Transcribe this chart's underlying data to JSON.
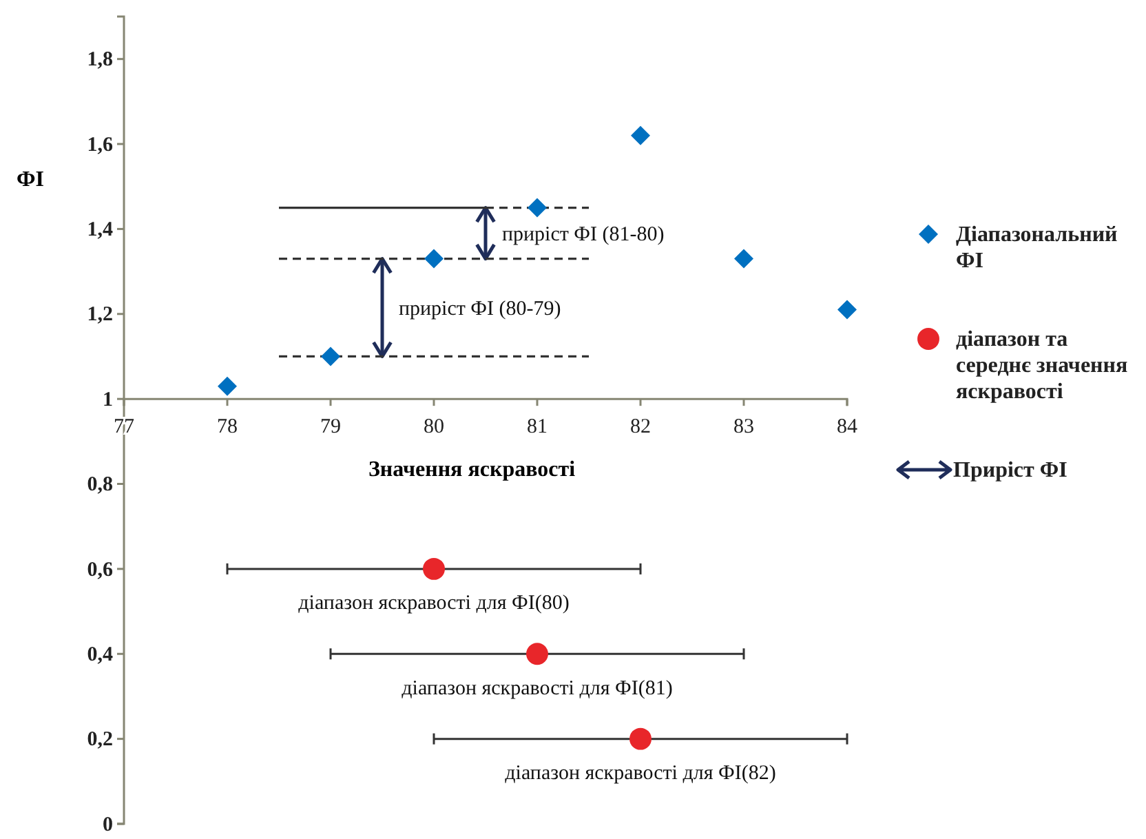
{
  "chart_data": {
    "type": "scatter",
    "xlabel": "Значення яскравості",
    "ylabel": "ФІ",
    "xlim": [
      77,
      84
    ],
    "xticks": [
      77,
      78,
      79,
      80,
      81,
      82,
      83,
      84
    ],
    "ylim": [
      0,
      1.9
    ],
    "yticks": [
      0,
      {
        "value": 0.2,
        "label": "0,2"
      },
      {
        "value": 0.4,
        "label": "0,4"
      },
      {
        "value": 0.6,
        "label": "0,6"
      },
      {
        "value": 0.8,
        "label": "0,8"
      },
      1,
      {
        "value": 1.2,
        "label": "1,2"
      },
      {
        "value": 1.4,
        "label": "1,4"
      },
      {
        "value": 1.6,
        "label": "1,6"
      },
      {
        "value": 1.8,
        "label": "1,8"
      }
    ],
    "grid": false,
    "legend": "right",
    "series": [
      {
        "name": "Діапазональний ФІ",
        "color": "#0070c0",
        "marker": "diamond",
        "x": [
          78,
          79,
          80,
          81,
          82,
          83,
          84
        ],
        "values": [
          1.03,
          1.1,
          1.33,
          1.45,
          1.62,
          1.33,
          1.21
        ]
      },
      {
        "name": "діапазон та середнє значення яскравості",
        "color": "#e8262a",
        "marker": "circle",
        "x": [
          80,
          81,
          82
        ],
        "values": [
          0.6,
          0.4,
          0.2
        ],
        "xerrors": [
          [
            78,
            82
          ],
          [
            79,
            83
          ],
          [
            80,
            84
          ]
        ]
      },
      {
        "type": "line",
        "name": "Приріст ФІ",
        "color": "#1f2d5a",
        "marker": "none",
        "line_style": "solid",
        "x": [
          79.5,
          79.5,
          null,
          80.5,
          80.5
        ],
        "values": [
          1.1,
          1.33,
          null,
          1.33,
          1.45
        ]
      },
      {
        "type": "line",
        "color": "#333333",
        "marker": "none",
        "line_style": "solid",
        "x": [
          78.5,
          80.5
        ],
        "values": [
          1.45,
          1.45
        ]
      },
      {
        "type": "line",
        "color": "#333333",
        "marker": "none",
        "line_style": "dashed",
        "x": [
          80.5,
          81.5
        ],
        "values": [
          1.45,
          1.45
        ]
      },
      {
        "type": "line",
        "color": "#333333",
        "marker": "none",
        "line_style": "dashed",
        "x": [
          78.5,
          81.5
        ],
        "values": [
          1.33,
          1.33
        ]
      },
      {
        "type": "line",
        "color": "#333333",
        "marker": "none",
        "line_style": "dashed",
        "x": [
          78.5,
          81.5
        ],
        "values": [
          1.1,
          1.1
        ]
      }
    ],
    "annotations": [
      {
        "text": "приріст ФІ (81-80)",
        "x": 80.5,
        "y": 1.39
      },
      {
        "text": "приріст ФІ (80-79)",
        "x": 79.5,
        "y": 1.215
      },
      {
        "text": "діапазон яскравості для ФІ(80)",
        "x": 80,
        "y": 0.6
      },
      {
        "text": "діапазон яскравості для ФІ(81)",
        "x": 81,
        "y": 0.4
      },
      {
        "text": "діапазон яскравості для ФІ(82)",
        "x": 82,
        "y": 0.2
      }
    ]
  }
}
